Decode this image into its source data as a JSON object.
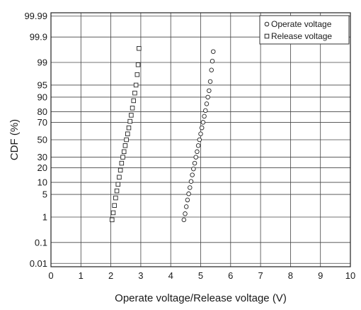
{
  "chart_data": {
    "type": "scatter",
    "title": "",
    "xlabel": "Operate voltage/Release voltage (V)",
    "ylabel": "CDF (%)",
    "xlim": [
      0,
      10
    ],
    "y_scale": "normal-probability",
    "x_ticks": [
      "0",
      "1",
      "2",
      "3",
      "4",
      "5",
      "6",
      "7",
      "8",
      "9",
      "10"
    ],
    "y_ticks": [
      "0.01",
      "0.1",
      "1",
      "5",
      "10",
      "20",
      "30",
      "50",
      "70",
      "80",
      "90",
      "95",
      "99",
      "99.9",
      "99.99"
    ],
    "grid": true,
    "legend_position": "top-right",
    "series": [
      {
        "name": "Operate voltage",
        "marker": "circle",
        "points": [
          [
            4.44,
            0.8
          ],
          [
            4.48,
            1.3
          ],
          [
            4.52,
            2.2
          ],
          [
            4.56,
            3.5
          ],
          [
            4.6,
            5.2
          ],
          [
            4.64,
            7.5
          ],
          [
            4.68,
            10.5
          ],
          [
            4.72,
            14.5
          ],
          [
            4.76,
            19
          ],
          [
            4.8,
            24
          ],
          [
            4.84,
            30
          ],
          [
            4.88,
            36
          ],
          [
            4.92,
            43
          ],
          [
            4.96,
            50
          ],
          [
            5.0,
            57
          ],
          [
            5.04,
            64
          ],
          [
            5.08,
            70
          ],
          [
            5.12,
            76
          ],
          [
            5.16,
            81
          ],
          [
            5.2,
            86
          ],
          [
            5.24,
            90
          ],
          [
            5.28,
            93
          ],
          [
            5.32,
            96
          ],
          [
            5.36,
            98.2
          ],
          [
            5.39,
            99.1
          ],
          [
            5.42,
            99.6
          ]
        ]
      },
      {
        "name": "Release voltage",
        "marker": "square",
        "points": [
          [
            2.04,
            0.8
          ],
          [
            2.08,
            1.4
          ],
          [
            2.12,
            2.4
          ],
          [
            2.16,
            4
          ],
          [
            2.2,
            6.2
          ],
          [
            2.24,
            9
          ],
          [
            2.28,
            13
          ],
          [
            2.32,
            18
          ],
          [
            2.36,
            24
          ],
          [
            2.4,
            30
          ],
          [
            2.44,
            36
          ],
          [
            2.48,
            43
          ],
          [
            2.52,
            50
          ],
          [
            2.56,
            57
          ],
          [
            2.6,
            64
          ],
          [
            2.64,
            71
          ],
          [
            2.68,
            77
          ],
          [
            2.72,
            83
          ],
          [
            2.76,
            88
          ],
          [
            2.8,
            92
          ],
          [
            2.84,
            95
          ],
          [
            2.88,
            97.5
          ],
          [
            2.91,
            98.8
          ],
          [
            2.94,
            99.7
          ]
        ]
      }
    ]
  }
}
